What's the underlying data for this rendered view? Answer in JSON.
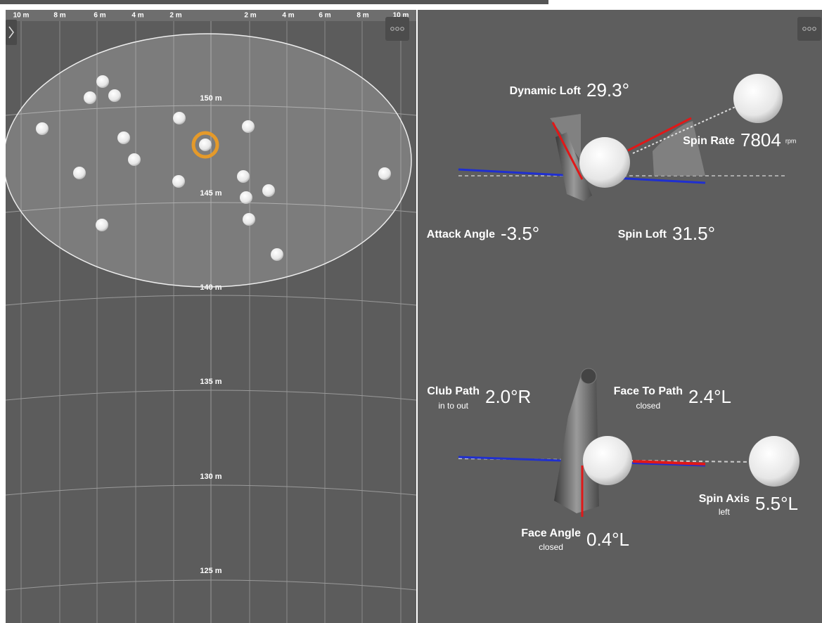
{
  "ruler": {
    "labels": [
      "10 m",
      "8 m",
      "6 m",
      "4 m",
      "2 m",
      "2 m",
      "4 m",
      "6 m",
      "8 m",
      "10 m"
    ]
  },
  "distance_labels": [
    "150 m",
    "145 m",
    "140 m",
    "135 m",
    "130 m",
    "125 m"
  ],
  "metrics": [
    {
      "label": "Dynamic Loft",
      "value": "29.3°"
    },
    {
      "label": "Spin Rate",
      "value": "7804",
      "unit": "rpm"
    },
    {
      "label": "Attack Angle",
      "value": "-3.5°"
    },
    {
      "label": "Spin Loft",
      "value": "31.5°"
    },
    {
      "label": "Club Path",
      "note": "in to out",
      "value": "2.0°R"
    },
    {
      "label": "Face To Path",
      "note": "closed",
      "value": "2.4°L"
    },
    {
      "label": "Spin Axis",
      "note": "left",
      "value": "5.5°L"
    },
    {
      "label": "Face Angle",
      "note": "closed",
      "value": "0.4°L"
    }
  ]
}
